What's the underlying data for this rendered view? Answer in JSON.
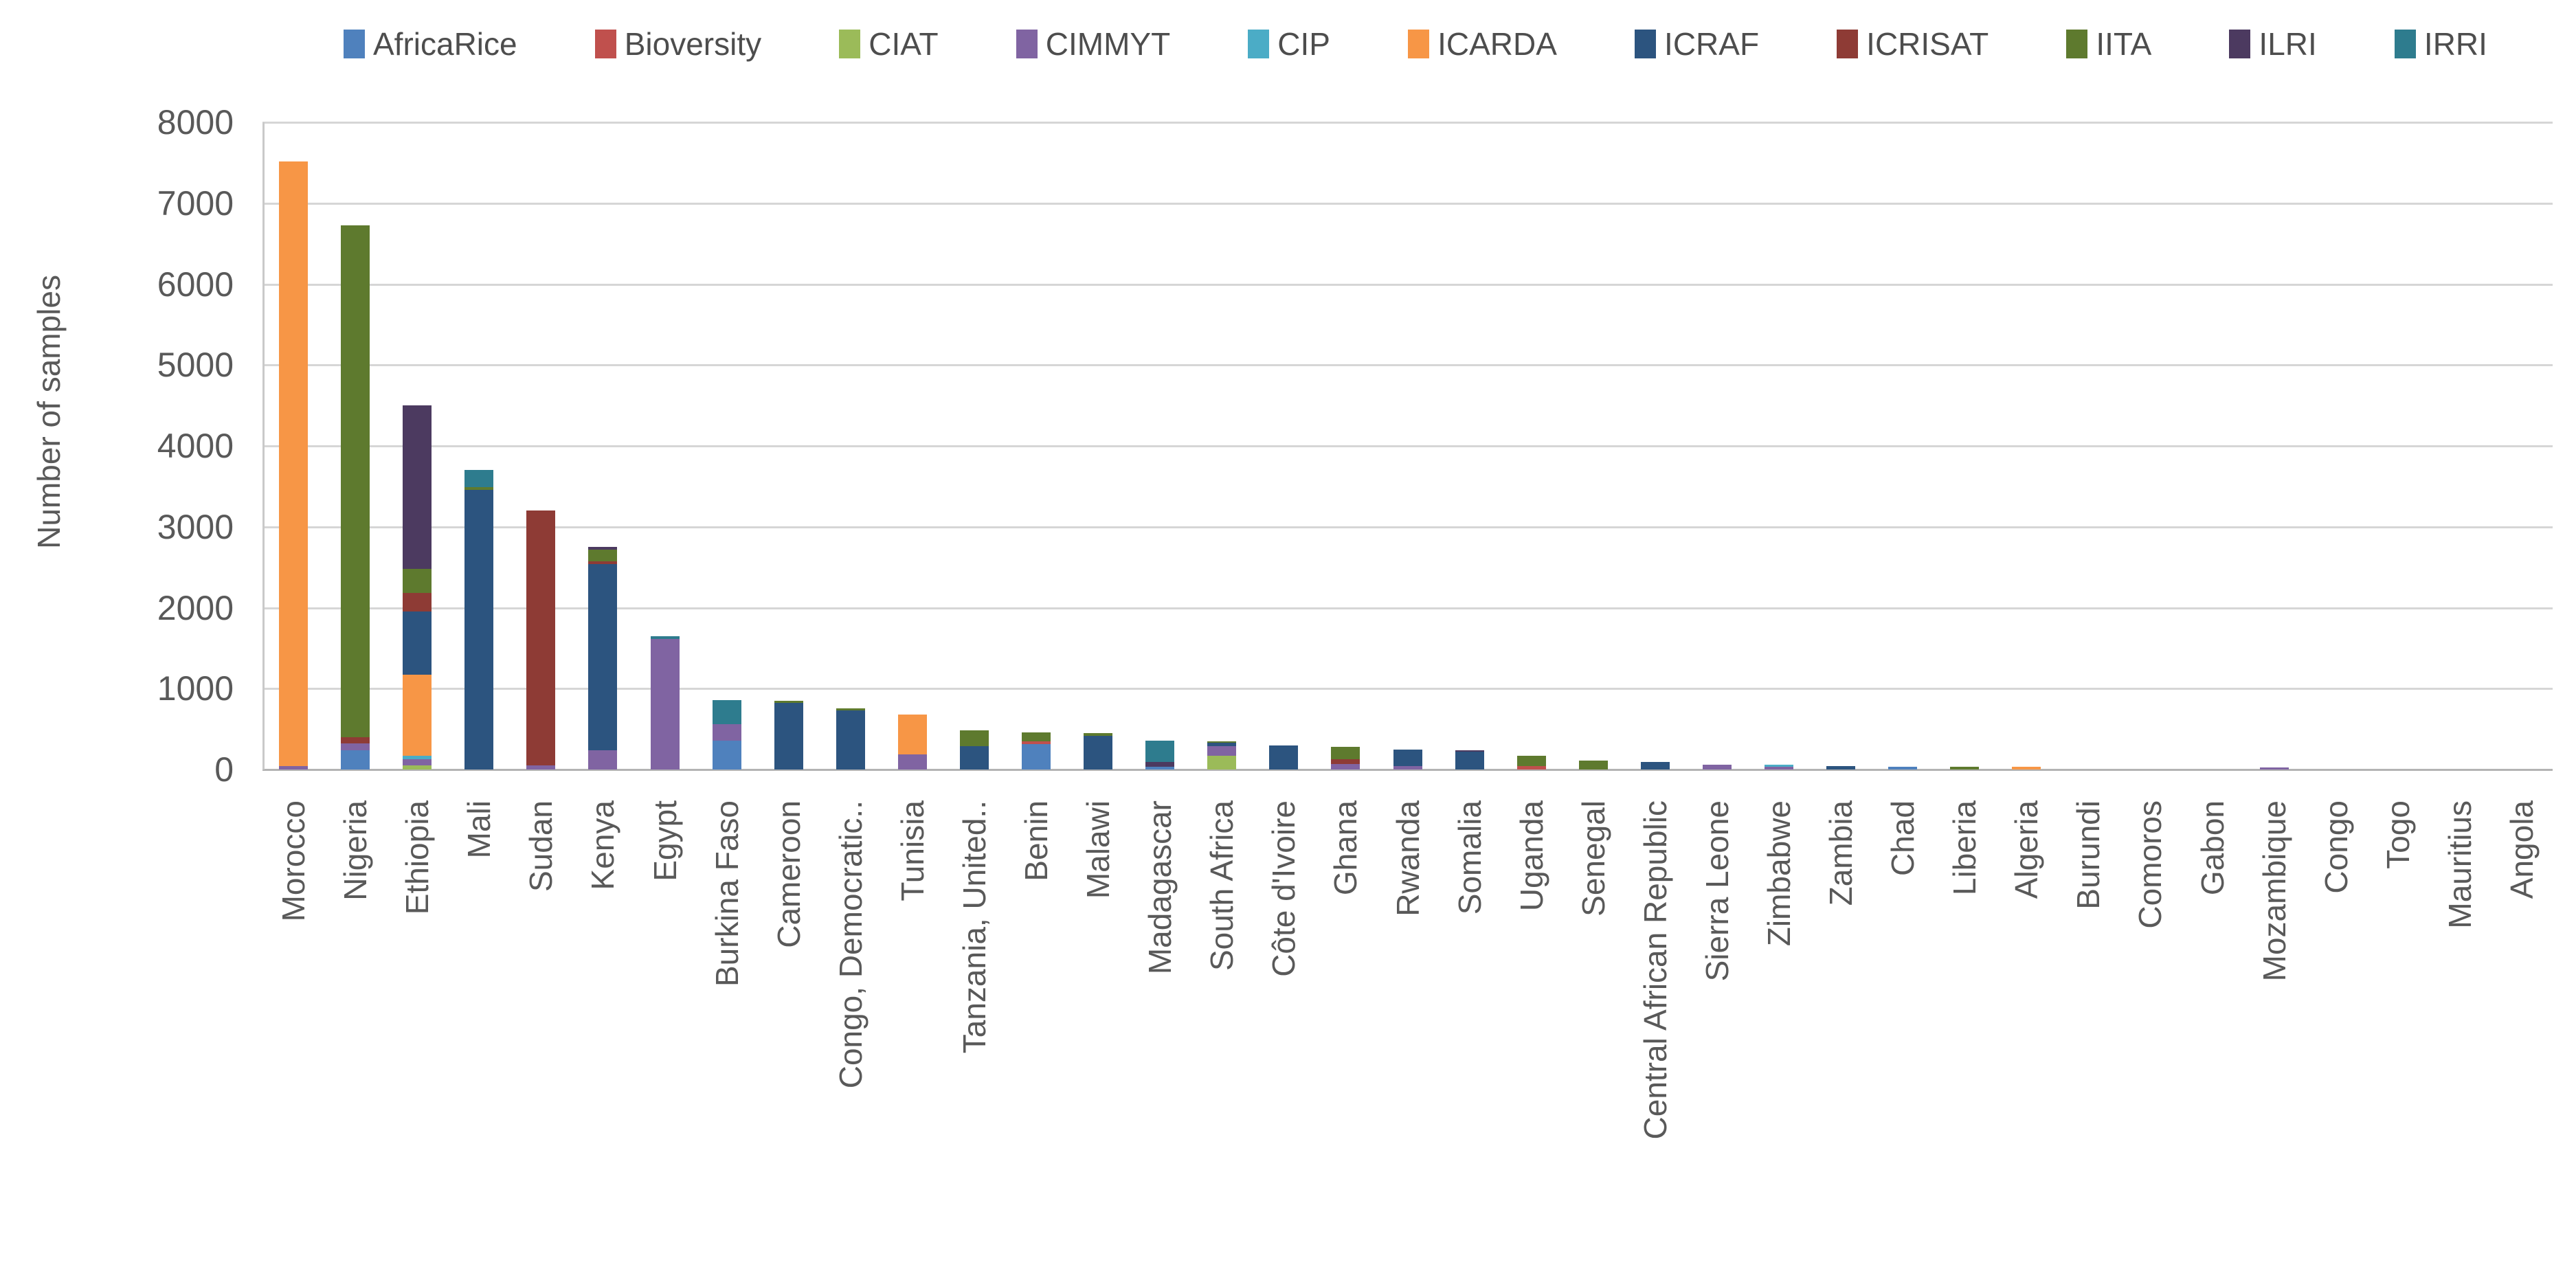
{
  "chart_data": {
    "type": "bar",
    "stacked": true,
    "title": "",
    "xlabel": "",
    "ylabel": "Number of samples",
    "ylim": [
      0,
      8000
    ],
    "ytick_step": 1000,
    "grid": true,
    "legend_position": "top",
    "text_color": "#595959",
    "categories": [
      "Morocco",
      "Nigeria",
      "Ethiopia",
      "Mali",
      "Sudan",
      "Kenya",
      "Egypt",
      "Burkina Faso",
      "Cameroon",
      "Congo, Democratic..",
      "Tunisia",
      "Tanzania, United..",
      "Benin",
      "Malawi",
      "Madagascar",
      "South Africa",
      "Côte d'Ivoire",
      "Ghana",
      "Rwanda",
      "Somalia",
      "Uganda",
      "Senegal",
      "Central African Republic",
      "Sierra Leone",
      "Zimbabwe",
      "Zambia",
      "Chad",
      "Liberia",
      "Algeria",
      "Burundi",
      "Comoros",
      "Gabon",
      "Mozambique",
      "Congo",
      "Togo",
      "Mauritius",
      "Angola"
    ],
    "series": [
      {
        "name": "AfricaRice",
        "color": "#4F81BD",
        "values": [
          0,
          240,
          0,
          0,
          0,
          0,
          0,
          360,
          0,
          0,
          0,
          0,
          310,
          0,
          30,
          0,
          0,
          0,
          0,
          0,
          0,
          0,
          0,
          0,
          0,
          0,
          30,
          0,
          0,
          0,
          0,
          0,
          0,
          0,
          0,
          0,
          0
        ]
      },
      {
        "name": "Bioversity",
        "color": "#C0504D",
        "values": [
          0,
          0,
          0,
          0,
          0,
          0,
          0,
          0,
          0,
          0,
          0,
          0,
          40,
          0,
          0,
          0,
          0,
          0,
          0,
          0,
          40,
          0,
          0,
          0,
          0,
          0,
          0,
          0,
          0,
          0,
          0,
          0,
          0,
          0,
          0,
          0,
          0
        ]
      },
      {
        "name": "CIAT",
        "color": "#9BBB59",
        "values": [
          0,
          0,
          50,
          0,
          0,
          0,
          0,
          0,
          0,
          0,
          0,
          0,
          0,
          0,
          0,
          170,
          0,
          0,
          0,
          0,
          0,
          0,
          0,
          0,
          0,
          0,
          0,
          0,
          0,
          0,
          0,
          0,
          0,
          0,
          0,
          0,
          0
        ]
      },
      {
        "name": "CIMMYT",
        "color": "#8064A2",
        "values": [
          40,
          85,
          80,
          0,
          50,
          240,
          1610,
          200,
          0,
          0,
          190,
          0,
          0,
          0,
          0,
          120,
          0,
          70,
          40,
          0,
          0,
          0,
          0,
          60,
          35,
          0,
          0,
          0,
          0,
          0,
          0,
          0,
          25,
          0,
          0,
          0,
          0
        ]
      },
      {
        "name": "CIP",
        "color": "#4BACC6",
        "values": [
          0,
          0,
          40,
          0,
          0,
          0,
          0,
          0,
          0,
          0,
          0,
          0,
          0,
          0,
          0,
          0,
          0,
          0,
          0,
          0,
          0,
          0,
          0,
          0,
          25,
          0,
          0,
          0,
          0,
          0,
          0,
          0,
          0,
          0,
          0,
          0,
          0
        ]
      },
      {
        "name": "ICARDA",
        "color": "#F79646",
        "values": [
          7480,
          0,
          1000,
          0,
          0,
          0,
          0,
          0,
          0,
          0,
          490,
          0,
          0,
          0,
          0,
          0,
          0,
          0,
          0,
          0,
          0,
          0,
          0,
          0,
          0,
          0,
          0,
          0,
          30,
          0,
          0,
          0,
          0,
          0,
          0,
          0,
          0
        ]
      },
      {
        "name": "ICRAF",
        "color": "#2C547F",
        "values": [
          0,
          0,
          780,
          3460,
          0,
          2300,
          0,
          0,
          820,
          730,
          0,
          290,
          0,
          420,
          0,
          40,
          300,
          0,
          210,
          220,
          0,
          0,
          90,
          0,
          0,
          45,
          0,
          0,
          0,
          0,
          0,
          0,
          0,
          0,
          0,
          0,
          0
        ]
      },
      {
        "name": "ICRISAT",
        "color": "#8E3B35",
        "values": [
          0,
          75,
          230,
          0,
          3150,
          30,
          0,
          0,
          0,
          0,
          0,
          0,
          0,
          0,
          0,
          0,
          0,
          60,
          0,
          0,
          0,
          0,
          0,
          0,
          0,
          0,
          0,
          0,
          0,
          0,
          0,
          0,
          0,
          0,
          0,
          0,
          0
        ]
      },
      {
        "name": "IITA",
        "color": "#5E7A2E",
        "values": [
          0,
          6330,
          300,
          30,
          0,
          150,
          0,
          0,
          30,
          30,
          0,
          190,
          110,
          30,
          0,
          20,
          0,
          150,
          0,
          0,
          130,
          110,
          0,
          0,
          0,
          0,
          0,
          30,
          0,
          0,
          0,
          0,
          0,
          0,
          0,
          0,
          0
        ]
      },
      {
        "name": "ILRI",
        "color": "#4C3A60",
        "values": [
          0,
          0,
          2020,
          0,
          0,
          30,
          0,
          0,
          0,
          0,
          0,
          0,
          0,
          0,
          60,
          0,
          0,
          0,
          0,
          20,
          0,
          0,
          0,
          0,
          0,
          0,
          0,
          0,
          0,
          0,
          0,
          0,
          0,
          0,
          0,
          0,
          0
        ]
      },
      {
        "name": "IRRI",
        "color": "#2E7C8E",
        "values": [
          0,
          0,
          0,
          210,
          0,
          0,
          40,
          300,
          0,
          0,
          0,
          0,
          0,
          0,
          270,
          0,
          0,
          0,
          0,
          0,
          0,
          0,
          0,
          0,
          0,
          0,
          0,
          0,
          0,
          0,
          0,
          0,
          0,
          0,
          0,
          0,
          0
        ]
      }
    ],
    "y_tick_labels": [
      "0",
      "1000",
      "2000",
      "3000",
      "4000",
      "5000",
      "6000",
      "7000",
      "8000"
    ]
  }
}
